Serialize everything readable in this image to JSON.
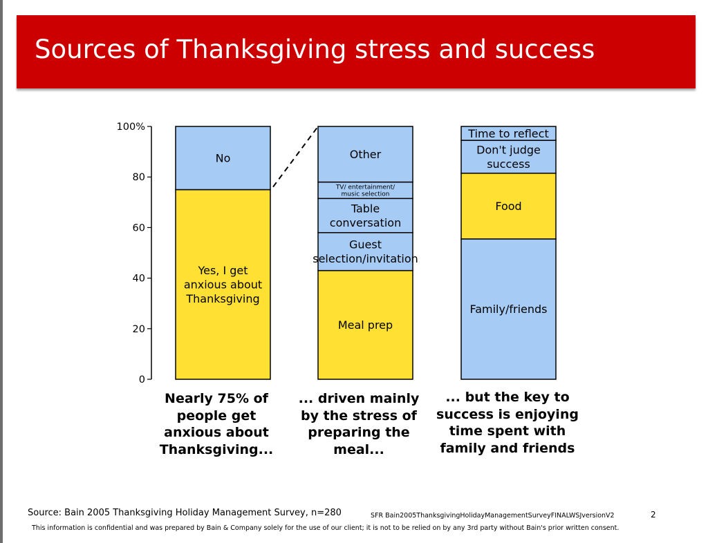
{
  "title": "Sources of Thanksgiving stress and success",
  "chart_data": {
    "type": "stacked-bar",
    "ylim": [
      0,
      100
    ],
    "yticks": [
      "0",
      "20",
      "40",
      "60",
      "80",
      "100%"
    ],
    "ytick_values": [
      0,
      20,
      40,
      60,
      80,
      100
    ],
    "bars": [
      {
        "caption": "Nearly 75% of people get anxious about Thanksgiving...",
        "segments": [
          {
            "lines": [
              "Yes, I get",
              "anxious about",
              "Thanksgiving"
            ],
            "value": 75,
            "color": "#ffe033"
          },
          {
            "lines": [
              "No"
            ],
            "value": 25,
            "color": "#a6cbf5"
          }
        ]
      },
      {
        "caption": "... driven mainly by the stress of preparing the meal...",
        "segments": [
          {
            "lines": [
              "Meal prep"
            ],
            "value": 43,
            "color": "#ffe033"
          },
          {
            "lines": [
              "Guest",
              "selection/invitation"
            ],
            "value": 15,
            "color": "#a6cbf5"
          },
          {
            "lines": [
              "Table",
              "conversation"
            ],
            "value": 13.5,
            "color": "#a6cbf5"
          },
          {
            "lines": [
              "TV/ entertainment/",
              "music selection"
            ],
            "value": 6.5,
            "color": "#a6cbf5"
          },
          {
            "lines": [
              "Other"
            ],
            "value": 22,
            "color": "#a6cbf5"
          }
        ]
      },
      {
        "caption": "... but the key to success is enjoying time spent with family and friends",
        "segments": [
          {
            "lines": [
              "Family/friends"
            ],
            "value": 55.5,
            "color": "#a6cbf5"
          },
          {
            "lines": [
              "Food"
            ],
            "value": 26,
            "color": "#ffe033"
          },
          {
            "lines": [
              "Don't judge",
              "success"
            ],
            "value": 13,
            "color": "#a6cbf5"
          },
          {
            "lines": [
              "Time to reflect"
            ],
            "value": 5.5,
            "color": "#a6cbf5"
          }
        ]
      }
    ]
  },
  "captions": {
    "c1": [
      "Nearly 75% of",
      "people get",
      "anxious about",
      "Thanksgiving..."
    ],
    "c2": [
      "... driven mainly",
      "by the stress of",
      "preparing the",
      "meal..."
    ],
    "c3": [
      "... but the key to",
      "success is enjoying",
      "time spent with",
      "family and friends"
    ]
  },
  "footer": {
    "source": "Source:  Bain 2005 Thanksgiving Holiday Management Survey, n=280",
    "filename": "SFR   Bain2005ThanksgivingHolidayManagementSurveyFINALWSJversionV2",
    "page": "2",
    "confidential": "This information is confidential and was prepared by Bain & Company solely for the use of our client; it is not to be relied on by any 3rd party without Bain's prior written consent."
  }
}
